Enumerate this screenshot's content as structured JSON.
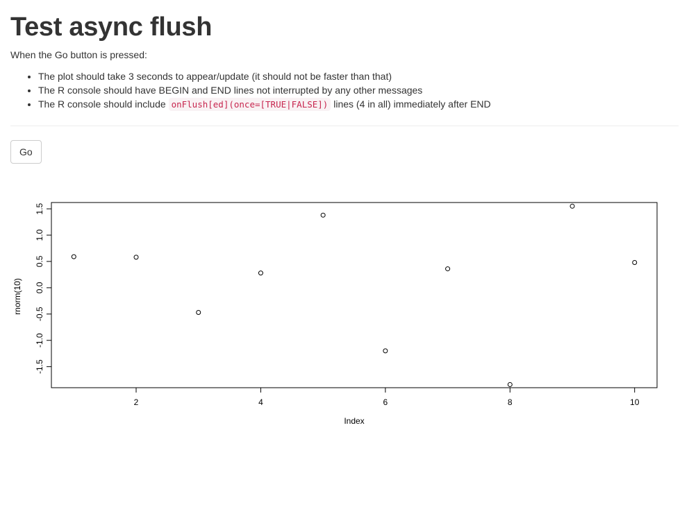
{
  "page": {
    "title": "Test async flush",
    "intro": "When the Go button is pressed:",
    "requirements": [
      {
        "text": "The plot should take 3 seconds to appear/update (it should not be faster than that)"
      },
      {
        "text": "The R console should have BEGIN and END lines not interrupted by any other messages"
      },
      {
        "before": "The R console should include ",
        "code": "onFlush[ed](once=[TRUE|FALSE])",
        "after": " lines (4 in all) immediately after END"
      }
    ],
    "go_label": "Go"
  },
  "chart_data": {
    "type": "scatter",
    "x": [
      1,
      2,
      3,
      4,
      5,
      6,
      7,
      8,
      9,
      10
    ],
    "y": [
      0.59,
      0.58,
      -0.47,
      0.28,
      1.38,
      -1.2,
      0.36,
      -1.84,
      1.55,
      0.48
    ],
    "xlabel": "Index",
    "ylabel": "rnorm(10)",
    "xlim": [
      0.64,
      10.36
    ],
    "ylim": [
      -1.9,
      1.62
    ],
    "xticks": [
      2,
      4,
      6,
      8,
      10
    ],
    "yticks": [
      -1.5,
      -1.0,
      -0.5,
      0.0,
      0.5,
      1.0,
      1.5
    ],
    "xtick_labels": [
      "2",
      "4",
      "6",
      "8",
      "10"
    ],
    "ytick_labels": [
      "-1.5",
      "-1.0",
      "-0.5",
      "0.0",
      "0.5",
      "1.0",
      "1.5"
    ],
    "grid": false,
    "marker": "open-circle"
  }
}
